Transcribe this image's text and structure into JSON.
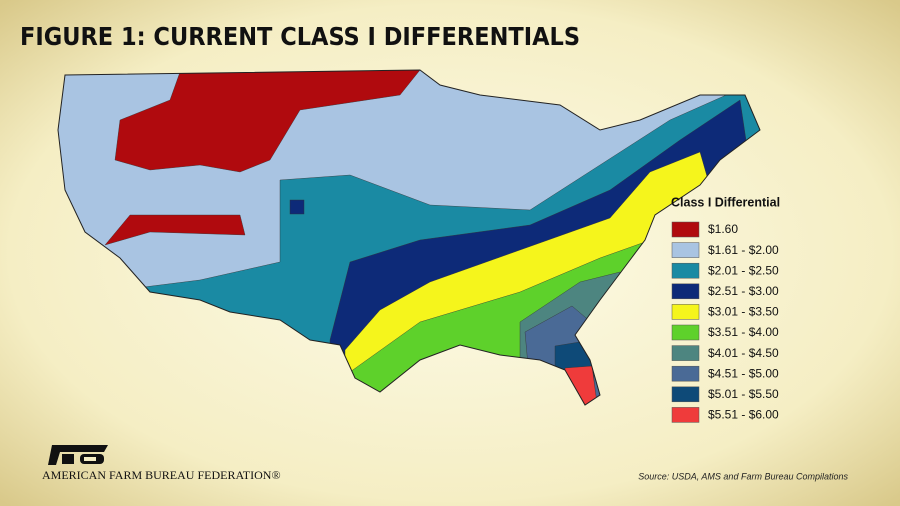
{
  "title": "FIGURE 1: CURRENT CLASS I DIFFERENTIALS",
  "legend": {
    "title": "Class I Differential",
    "items": [
      {
        "label": "$1.60",
        "color": "#b00a0e"
      },
      {
        "label": "$1.61 - $2.00",
        "color": "#a9c4e2"
      },
      {
        "label": "$2.01 - $2.50",
        "color": "#1a8aa3"
      },
      {
        "label": "$2.51 - $3.00",
        "color": "#0d2a78"
      },
      {
        "label": "$3.01 - $3.50",
        "color": "#f5f51c"
      },
      {
        "label": "$3.51 - $4.00",
        "color": "#5ed12b"
      },
      {
        "label": "$4.01 - $4.50",
        "color": "#4d8580"
      },
      {
        "label": "$4.51 - $5.00",
        "color": "#4a6a96"
      },
      {
        "label": "$5.01 - $5.50",
        "color": "#0e4a78"
      },
      {
        "label": "$5.51 - $6.00",
        "color": "#ef3b3b"
      }
    ]
  },
  "source": "Source: USDA, AMS and Farm Bureau Compilations",
  "organization": "AMERICAN FARM BUREAU FEDERATION®"
}
